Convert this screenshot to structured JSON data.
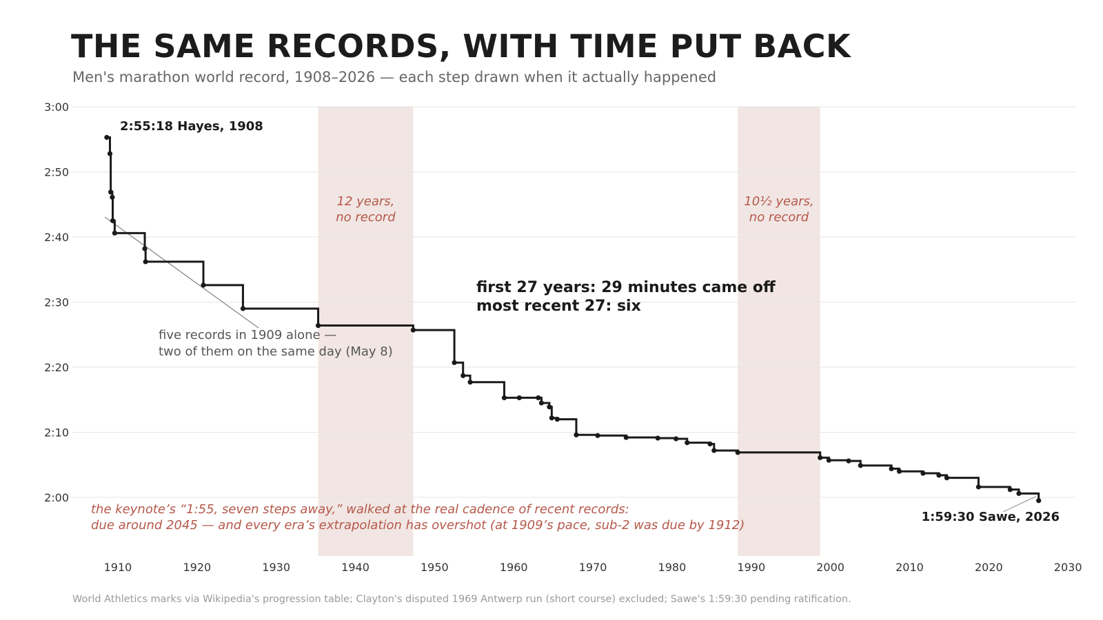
{
  "title": "THE SAME RECORDS, WITH TIME PUT BACK",
  "subtitle": "Men's marathon world record, 1908–2026 — each step drawn when it actually happened",
  "source": "World Athletics marks via Wikipedia's progression table; Clayton's disputed 1969 Antwerp run (short course) excluded; Sawe's 1:59:30 pending ratification.",
  "chart_data": {
    "type": "line",
    "step": "post",
    "xlim": [
      1905,
      2030
    ],
    "ylim_minutes": [
      111,
      180
    ],
    "x_ticks": [
      1910,
      1920,
      1930,
      1940,
      1950,
      1960,
      1970,
      1980,
      1990,
      2000,
      2010,
      2020,
      2030
    ],
    "y_ticks": [
      {
        "value": 120,
        "label": "2:00"
      },
      {
        "value": 130,
        "label": "2:10"
      },
      {
        "value": 140,
        "label": "2:20"
      },
      {
        "value": 150,
        "label": "2:30"
      },
      {
        "value": 160,
        "label": "2:40"
      },
      {
        "value": 170,
        "label": "2:50"
      },
      {
        "value": 180,
        "label": "3:00"
      }
    ],
    "grid": "horizontal",
    "records": [
      {
        "x": 1908.6,
        "y": 175.3
      },
      {
        "x": 1909.0,
        "y": 172.8
      },
      {
        "x": 1909.1,
        "y": 166.9
      },
      {
        "x": 1909.3,
        "y": 166.1
      },
      {
        "x": 1909.35,
        "y": 162.5
      },
      {
        "x": 1909.6,
        "y": 160.6
      },
      {
        "x": 1913.4,
        "y": 158.2
      },
      {
        "x": 1913.5,
        "y": 156.2
      },
      {
        "x": 1920.8,
        "y": 152.6
      },
      {
        "x": 1925.8,
        "y": 149.0
      },
      {
        "x": 1935.3,
        "y": 146.4
      },
      {
        "x": 1947.3,
        "y": 145.7
      },
      {
        "x": 1952.5,
        "y": 140.7
      },
      {
        "x": 1953.6,
        "y": 138.7
      },
      {
        "x": 1954.5,
        "y": 137.7
      },
      {
        "x": 1958.8,
        "y": 135.3
      },
      {
        "x": 1960.7,
        "y": 135.3
      },
      {
        "x": 1963.1,
        "y": 135.3
      },
      {
        "x": 1963.5,
        "y": 134.5
      },
      {
        "x": 1964.5,
        "y": 133.9
      },
      {
        "x": 1964.8,
        "y": 132.2
      },
      {
        "x": 1965.5,
        "y": 132.0
      },
      {
        "x": 1967.9,
        "y": 129.6
      },
      {
        "x": 1970.6,
        "y": 129.5
      },
      {
        "x": 1974.2,
        "y": 129.2
      },
      {
        "x": 1978.2,
        "y": 129.1
      },
      {
        "x": 1980.5,
        "y": 129.0
      },
      {
        "x": 1981.9,
        "y": 128.4
      },
      {
        "x": 1984.8,
        "y": 128.2
      },
      {
        "x": 1985.3,
        "y": 127.2
      },
      {
        "x": 1988.3,
        "y": 126.9
      },
      {
        "x": 1998.7,
        "y": 126.1
      },
      {
        "x": 1999.8,
        "y": 125.7
      },
      {
        "x": 2002.3,
        "y": 125.6
      },
      {
        "x": 2003.8,
        "y": 124.9
      },
      {
        "x": 2007.7,
        "y": 124.4
      },
      {
        "x": 2008.7,
        "y": 124.0
      },
      {
        "x": 2011.7,
        "y": 123.7
      },
      {
        "x": 2013.7,
        "y": 123.4
      },
      {
        "x": 2014.7,
        "y": 123.0
      },
      {
        "x": 2018.7,
        "y": 121.6
      },
      {
        "x": 2022.7,
        "y": 121.2
      },
      {
        "x": 2023.8,
        "y": 120.6
      },
      {
        "x": 2026.3,
        "y": 119.5
      }
    ],
    "gaps": [
      {
        "x0": 1935.3,
        "x1": 1947.3,
        "label": [
          "12 years,",
          "no record"
        ]
      },
      {
        "x0": 1988.3,
        "x1": 1998.7,
        "label": [
          "10½ years,",
          "no record"
        ]
      }
    ],
    "labels": {
      "first": "2:55:18  Hayes, 1908",
      "last": "1:59:30  Sawe, 2026",
      "note_1909": [
        "five records in 1909 alone —",
        "two of them on the same day (May 8)"
      ],
      "summary": [
        "first 27 years: 29 minutes came off",
        "most recent 27: six"
      ],
      "keynote": [
        "the keynote’s “1:55, seven steps away,” walked at the real cadence of recent records:",
        "due around 2045 — and every era’s extrapolation has overshot (at 1909’s pace, sub-2 was due by 1912)"
      ]
    },
    "colors": {
      "line": "#1a1a1a",
      "gap_band": "#f1e6e3",
      "gap_text": "#b5584a",
      "keynote_text": "#b5584a",
      "note_text": "#555555",
      "grid": "#e6e6e6",
      "axis_text": "#333333"
    }
  }
}
